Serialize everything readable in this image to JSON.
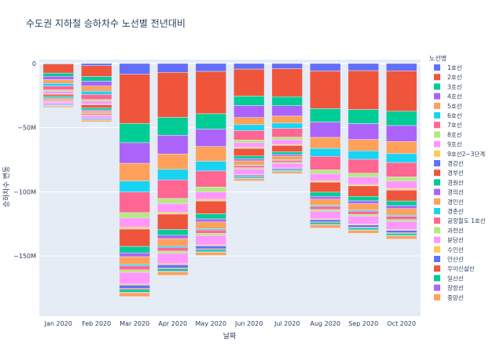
{
  "chart_data": {
    "type": "bar",
    "stacked": true,
    "title": "수도권 지하철 승하차수 노선별 전년대비",
    "xlabel": "날짜",
    "ylabel": "승하차수 변동",
    "categories": [
      "Jan 2020",
      "Feb 2020",
      "Mar 2020",
      "Apr 2020",
      "May 2020",
      "Jun 2020",
      "Jul 2020",
      "Aug 2020",
      "Sep 2020",
      "Oct 2020"
    ],
    "yticks": [
      0,
      -50000000,
      -100000000,
      -150000000
    ],
    "ytick_labels": [
      "0",
      "−50M",
      "−100M",
      "−150M"
    ],
    "ylim": [
      -197000000,
      3000000
    ],
    "legend_title": "노선명",
    "legend_position": "right",
    "grid": true,
    "series": [
      {
        "name": "1호선",
        "color": "#636EFA",
        "values": [
          -500000,
          -1700000,
          -8400000,
          -7000000,
          -6200000,
          -4400000,
          -4100000,
          -5900000,
          -5600000,
          -5800000
        ]
      },
      {
        "name": "2호선",
        "color": "#EF553B",
        "values": [
          -7000000,
          -8500000,
          -38400000,
          -35000000,
          -33000000,
          -21000000,
          -21800000,
          -29300000,
          -30300000,
          -31400000
        ]
      },
      {
        "name": "3호선",
        "color": "#00CC96",
        "values": [
          -2500000,
          -3600000,
          -15000000,
          -14000000,
          -12000000,
          -7400000,
          -7000000,
          -10500000,
          -11000000,
          -11200000
        ]
      },
      {
        "name": "4호선",
        "color": "#AB63FA",
        "values": [
          -2600000,
          -3800000,
          -16000000,
          -14500000,
          -13500000,
          -9300000,
          -8100000,
          -11900000,
          -12300000,
          -12400000
        ]
      },
      {
        "name": "5호선",
        "color": "#FFA15A",
        "values": [
          -3000000,
          -4000000,
          -13800000,
          -12000000,
          -11500000,
          -5600000,
          -5500000,
          -8600000,
          -8900000,
          -9500000
        ]
      },
      {
        "name": "6호선",
        "color": "#19D3F3",
        "values": [
          -2000000,
          -2500000,
          -8600000,
          -8200000,
          -7600000,
          -4600000,
          -4100000,
          -6200000,
          -6600000,
          -6900000
        ]
      },
      {
        "name": "7호선",
        "color": "#FF6692",
        "values": [
          -3000000,
          -4000000,
          -16000000,
          -14500000,
          -12500000,
          -7400000,
          -6900000,
          -10500000,
          -10800000,
          -11200000
        ]
      },
      {
        "name": "8호선",
        "color": "#B6E880",
        "values": [
          -1000000,
          -1200000,
          -4200000,
          -4000000,
          -3800000,
          -2000000,
          -2000000,
          -3000000,
          -3100000,
          -3300000
        ]
      },
      {
        "name": "9호선",
        "color": "#FF97FF",
        "values": [
          -2000000,
          -2400000,
          -7000000,
          -6600000,
          -5700000,
          -3600000,
          -3600000,
          -5400000,
          -5600000,
          -5700000
        ]
      },
      {
        "name": "9호선2~3단계",
        "color": "#FECB52",
        "values": [
          -300000,
          -400000,
          -1300000,
          -1200000,
          -1100000,
          -700000,
          -600000,
          -900000,
          -900000,
          -1000000
        ]
      },
      {
        "name": "경강선",
        "color": "#636EFA",
        "values": [
          -100000,
          -100000,
          -400000,
          -400000,
          -300000,
          -200000,
          -200000,
          -300000,
          -300000,
          -300000
        ]
      },
      {
        "name": "경부선",
        "color": "#EF553B",
        "values": [
          -1500000,
          -2500000,
          -13500000,
          -12000000,
          -10000000,
          -5900000,
          -5000000,
          -7800000,
          -8200000,
          -8500000
        ]
      },
      {
        "name": "경원선",
        "color": "#00CC96",
        "values": [
          -1200000,
          -1500000,
          -5000000,
          -4500000,
          -4000000,
          -2300000,
          -2000000,
          -3300000,
          -3500000,
          -3600000
        ]
      },
      {
        "name": "경의선",
        "color": "#AB63FA",
        "values": [
          -700000,
          -900000,
          -3000000,
          -2600000,
          -2300000,
          -1500000,
          -1300000,
          -2100000,
          -2200000,
          -2300000
        ]
      },
      {
        "name": "경인선",
        "color": "#FFA15A",
        "values": [
          -1200000,
          -1500000,
          -6000000,
          -5700000,
          -5300000,
          -3200000,
          -2800000,
          -4800000,
          -4900000,
          -5100000
        ]
      },
      {
        "name": "경춘선",
        "color": "#19D3F3",
        "values": [
          -300000,
          -300000,
          -1200000,
          -1100000,
          -1000000,
          -500000,
          -500000,
          -900000,
          -900000,
          -900000
        ]
      },
      {
        "name": "공항철도 1호선",
        "color": "#FF6692",
        "values": [
          -800000,
          -1100000,
          -3000000,
          -2900000,
          -2600000,
          -1600000,
          -1500000,
          -2400000,
          -2500000,
          -2500000
        ]
      },
      {
        "name": "과천선",
        "color": "#B6E880",
        "values": [
          -500000,
          -600000,
          -2000000,
          -1800000,
          -1700000,
          -1000000,
          -900000,
          -1400000,
          -1400000,
          -1500000
        ]
      },
      {
        "name": "분당선",
        "color": "#FF97FF",
        "values": [
          -1600000,
          -2000000,
          -9000000,
          -8000000,
          -7300000,
          -4400000,
          -3600000,
          -5900000,
          -6200000,
          -6300000
        ]
      },
      {
        "name": "수인선",
        "color": "#FECB52",
        "values": [
          -200000,
          -200000,
          -1000000,
          -900000,
          -800000,
          -500000,
          -400000,
          -700000,
          -700000,
          -700000
        ]
      },
      {
        "name": "안산선",
        "color": "#636EFA",
        "values": [
          -600000,
          -700000,
          -2500000,
          -2300000,
          -2200000,
          -1100000,
          -1000000,
          -1700000,
          -1700000,
          -1800000
        ]
      },
      {
        "name": "우이신설선",
        "color": "#EF553B",
        "values": [
          -200000,
          -200000,
          -900000,
          -800000,
          -700000,
          -400000,
          -400000,
          -600000,
          -600000,
          -600000
        ]
      },
      {
        "name": "일산선",
        "color": "#00CC96",
        "values": [
          -400000,
          -500000,
          -2000000,
          -1800000,
          -1700000,
          -1000000,
          -900000,
          -1400000,
          -1400000,
          -1500000
        ]
      },
      {
        "name": "장항선",
        "color": "#AB63FA",
        "values": [
          -100000,
          -100000,
          -500000,
          -500000,
          -400000,
          -300000,
          -200000,
          -400000,
          -400000,
          -400000
        ]
      },
      {
        "name": "중앙선",
        "color": "#FFA15A",
        "values": [
          -900000,
          -1100000,
          -2900000,
          -2700000,
          -2400000,
          -1600000,
          -1400000,
          -2300000,
          -2300000,
          -2400000
        ]
      }
    ]
  }
}
